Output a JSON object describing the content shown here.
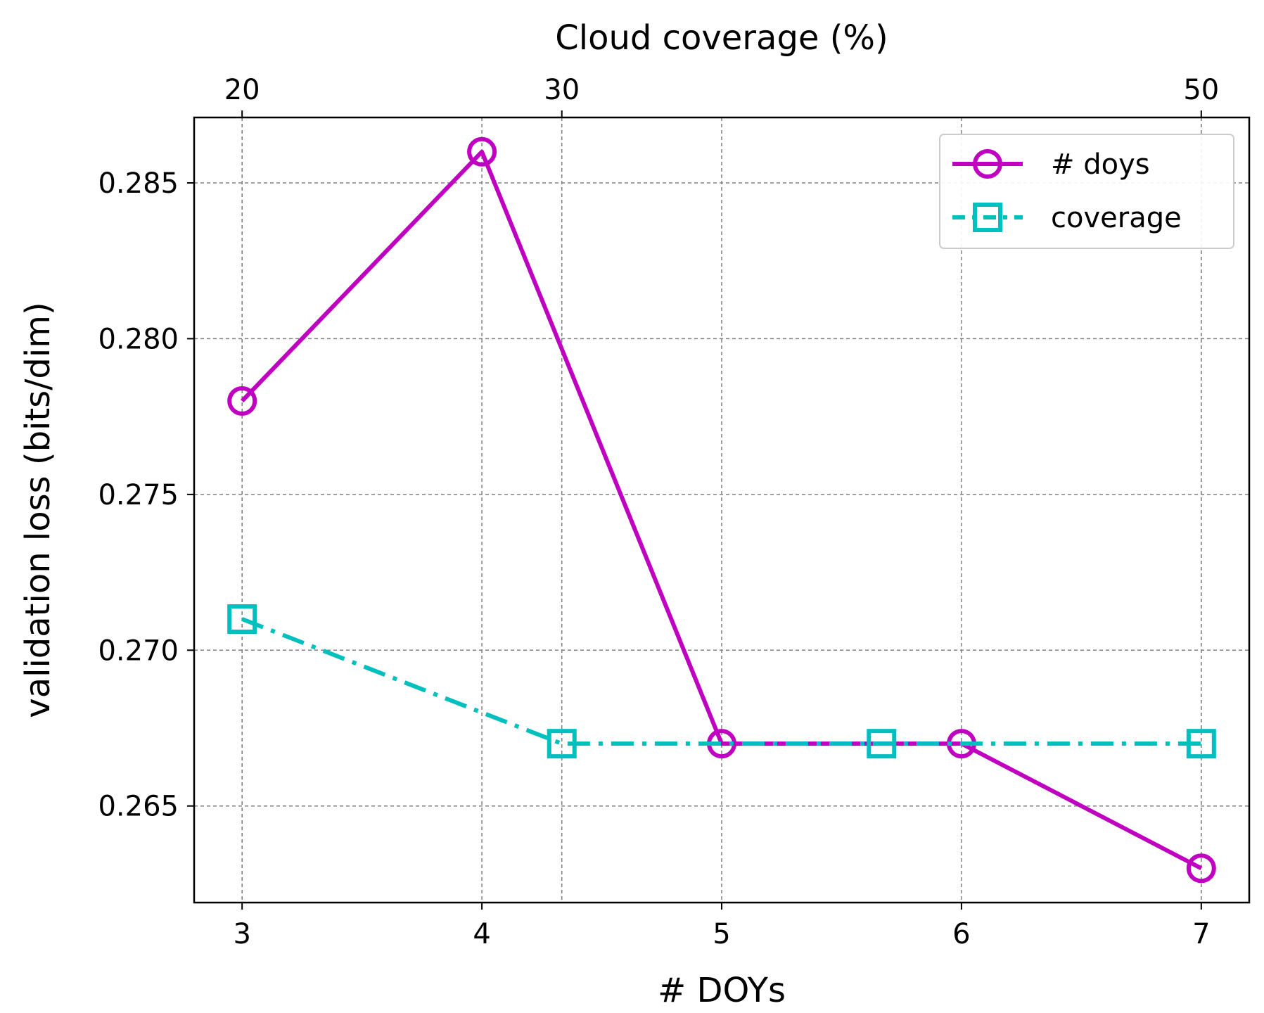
{
  "chart_data": {
    "type": "line",
    "xlabel": "# DOYs",
    "ylabel": "validation loss (bits/dim)",
    "top_xlabel": "Cloud coverage (%)",
    "xlim": [
      2.8,
      7.2
    ],
    "ylim": [
      0.2619,
      0.2871
    ],
    "x_ticks": [
      3,
      4,
      5,
      6,
      7
    ],
    "x_tick_labels": [
      "3",
      "4",
      "5",
      "6",
      "7"
    ],
    "y_ticks": [
      0.265,
      0.27,
      0.275,
      0.28,
      0.285
    ],
    "y_tick_labels": [
      "0.265",
      "0.270",
      "0.275",
      "0.280",
      "0.285"
    ],
    "top_ticks": [
      20,
      30,
      50
    ],
    "top_tick_labels": [
      "20",
      "30",
      "50"
    ],
    "top_xlim": [
      18.5,
      51.5
    ],
    "grid": true,
    "legend_position": "top-right",
    "series": [
      {
        "name": "# doys",
        "axis": "bottom",
        "x": [
          3,
          4,
          5,
          6,
          7
        ],
        "values": [
          0.278,
          0.286,
          0.267,
          0.267,
          0.263
        ],
        "color": "#c000c0",
        "marker": "circle",
        "line_style": "solid"
      },
      {
        "name": "coverage",
        "axis": "top",
        "x": [
          20,
          30,
          40,
          50
        ],
        "values": [
          0.271,
          0.267,
          0.267,
          0.267
        ],
        "color": "#00bfbf",
        "marker": "square",
        "line_style": "dashdot"
      }
    ]
  }
}
